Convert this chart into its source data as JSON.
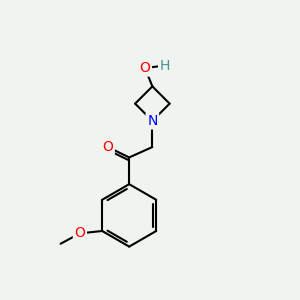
{
  "bg_color": "#f0f4f0",
  "bond_color": "#000000",
  "atom_colors": {
    "O": "#ff0000",
    "N": "#0000ff",
    "H": "#4a9090",
    "C": "#000000"
  },
  "font_size": 9,
  "bond_width": 1.5,
  "figsize": [
    3.0,
    3.0
  ],
  "dpi": 100
}
